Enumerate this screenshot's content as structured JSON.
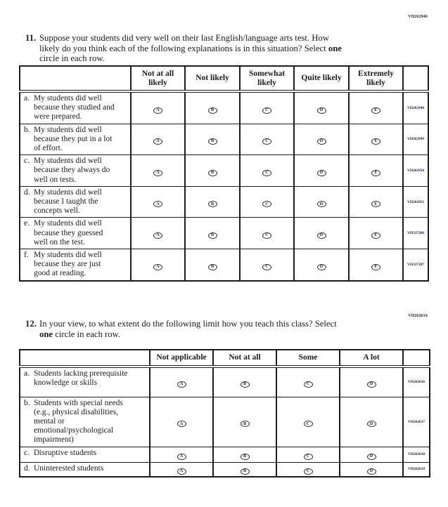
{
  "q11": {
    "number": "11.",
    "code": "VH262946",
    "text_lines": [
      [
        {
          "t": "Suppose your students did very well on their last English/language arts test. How"
        }
      ],
      [
        {
          "t": "likely do you think each of the following explanations is in this situation? Select "
        },
        {
          "t": "one",
          "b": true
        }
      ],
      [
        {
          "t": "circle in each row."
        }
      ]
    ],
    "table": {
      "column_headers": [
        "Not at all likely",
        "Not likely",
        "Somewhat likely",
        "Quite likely",
        "Extremely likely"
      ],
      "option_letters": [
        "A",
        "B",
        "C",
        "D",
        "E"
      ],
      "rows": [
        {
          "letter": "a.",
          "label": "My students did well because they studied and were prepared.",
          "code": "VH262948"
        },
        {
          "letter": "b.",
          "label": "My students did well because they put in a lot of effort.",
          "code": "VH262949"
        },
        {
          "letter": "c.",
          "label": "My students did well because they always do well on tests.",
          "code": "VH262950"
        },
        {
          "letter": "d.",
          "label": "My students did well because I taught the concepts well.",
          "code": "VH262951"
        },
        {
          "letter": "e.",
          "label": "My students did well because they guessed well on the test.",
          "code": "VH337286"
        },
        {
          "letter": "f.",
          "label": "My students did well because they are just good at reading.",
          "code": "VH337287"
        }
      ]
    }
  },
  "q12": {
    "number": "12.",
    "code": "VH262634",
    "text_lines": [
      [
        {
          "t": "In your view, to what extent do the following limit how you teach this class? Select"
        }
      ],
      [
        {
          "t": "one",
          "b": true
        },
        {
          "t": " circle in each row."
        }
      ]
    ],
    "table": {
      "column_headers": [
        "Not applicable",
        "Not at all",
        "Some",
        "A lot"
      ],
      "option_letters": [
        "A",
        "B",
        "C",
        "D"
      ],
      "rows": [
        {
          "letter": "a.",
          "label": "Students lacking prerequisite knowledge or skills",
          "code": "VH262636"
        },
        {
          "letter": "b.",
          "label": "Students with special needs (e.g., physical disabilities, mental or emotional/psychological impairment)",
          "code": "VH262637"
        },
        {
          "letter": "c.",
          "label": "Disruptive students",
          "code": "VH262638"
        },
        {
          "letter": "d.",
          "label": "Uninterested students",
          "code": "VH262639"
        }
      ]
    }
  }
}
